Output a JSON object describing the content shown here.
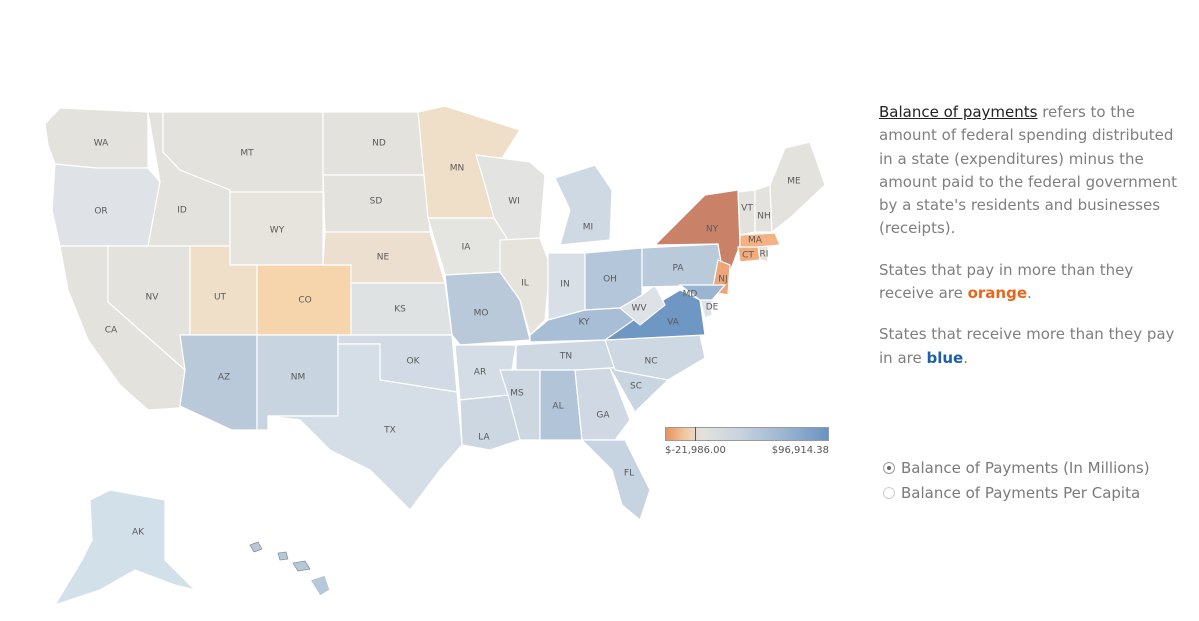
{
  "description": {
    "term": "Balance of payments",
    "p1_rest": " refers to the amount of federal spending distributed in a state (expenditures) minus the amount paid to the federal government by a state's residents and businesses (receipts).",
    "p2_before": "States that pay in more than they receive are ",
    "p2_colored": "orange",
    "p2_after": ".",
    "p3_before": "States that receive more than they pay in are ",
    "p3_colored": "blue",
    "p3_after": "."
  },
  "legend": {
    "min_label": "$-21,986.00",
    "max_label": "$96,914.38"
  },
  "options": [
    {
      "label": "Balance of Payments (In Millions)",
      "selected": true
    },
    {
      "label": "Balance of Payments Per Capita",
      "selected": false
    }
  ],
  "colors": {
    "neutral": "#e3e2dc",
    "orange_light": "#f1dbc2",
    "orange": "#f5cc9c",
    "orange_dark": "#c98267",
    "blue_light": "#cdd8e2",
    "blue": "#a9bfd5",
    "blue_dark": "#6f97c4"
  },
  "states": [
    {
      "abbr": "WA",
      "color": "#e3e2dc"
    },
    {
      "abbr": "OR",
      "color": "#dfe3e8"
    },
    {
      "abbr": "CA",
      "color": "#e3e2dc"
    },
    {
      "abbr": "ID",
      "color": "#e3e2dc"
    },
    {
      "abbr": "NV",
      "color": "#e3e2dc"
    },
    {
      "abbr": "MT",
      "color": "#e3e2dc"
    },
    {
      "abbr": "WY",
      "color": "#e7e3dd"
    },
    {
      "abbr": "UT",
      "color": "#efdfc9"
    },
    {
      "abbr": "AZ",
      "color": "#b9c9d9"
    },
    {
      "abbr": "CO",
      "color": "#f7d5ac"
    },
    {
      "abbr": "NM",
      "color": "#c8d4e0"
    },
    {
      "abbr": "ND",
      "color": "#e3e2dc"
    },
    {
      "abbr": "SD",
      "color": "#e3e2dc"
    },
    {
      "abbr": "NE",
      "color": "#ecdfd0"
    },
    {
      "abbr": "KS",
      "color": "#dfe2e3"
    },
    {
      "abbr": "OK",
      "color": "#d2dbe5"
    },
    {
      "abbr": "TX",
      "color": "#d5dde6"
    },
    {
      "abbr": "MN",
      "color": "#f0dfc8"
    },
    {
      "abbr": "IA",
      "color": "#e4e4e1"
    },
    {
      "abbr": "MO",
      "color": "#b9c9da"
    },
    {
      "abbr": "AR",
      "color": "#d4dce5"
    },
    {
      "abbr": "LA",
      "color": "#ccd7e2"
    },
    {
      "abbr": "WI",
      "color": "#e3e3e1"
    },
    {
      "abbr": "IL",
      "color": "#e6e2dc"
    },
    {
      "abbr": "MI",
      "color": "#cfd9e3"
    },
    {
      "abbr": "IN",
      "color": "#d8dfe7"
    },
    {
      "abbr": "OH",
      "color": "#b3c6da"
    },
    {
      "abbr": "KY",
      "color": "#a8bed6"
    },
    {
      "abbr": "TN",
      "color": "#cdd8e3"
    },
    {
      "abbr": "MS",
      "color": "#cdd7e2"
    },
    {
      "abbr": "AL",
      "color": "#b2c5d8"
    },
    {
      "abbr": "GA",
      "color": "#d0d9e3"
    },
    {
      "abbr": "FL",
      "color": "#c6d3e0"
    },
    {
      "abbr": "SC",
      "color": "#c9d5e1"
    },
    {
      "abbr": "NC",
      "color": "#cdd8e3"
    },
    {
      "abbr": "VA",
      "color": "#6f97c4"
    },
    {
      "abbr": "WV",
      "color": "#dde2e7"
    },
    {
      "abbr": "PA",
      "color": "#b9cadb"
    },
    {
      "abbr": "NY",
      "color": "#c98267"
    },
    {
      "abbr": "NJ",
      "color": "#efa57a"
    },
    {
      "abbr": "DE",
      "color": "#dfe3e8"
    },
    {
      "abbr": "MD",
      "color": "#9bb5d1"
    },
    {
      "abbr": "CT",
      "color": "#f4ab7b"
    },
    {
      "abbr": "RI",
      "color": "#e8e3df"
    },
    {
      "abbr": "MA",
      "color": "#f4b183"
    },
    {
      "abbr": "VT",
      "color": "#e3e2dc"
    },
    {
      "abbr": "NH",
      "color": "#e3e2dc"
    },
    {
      "abbr": "ME",
      "color": "#e3e2dc"
    },
    {
      "abbr": "AK",
      "color": "#d2e0ea"
    },
    {
      "abbr": "HI",
      "color": "#b6c8d8"
    }
  ]
}
